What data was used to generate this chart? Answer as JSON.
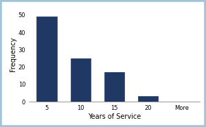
{
  "categories": [
    "5",
    "10",
    "15",
    "20",
    "More"
  ],
  "values": [
    49,
    25,
    17,
    3,
    0
  ],
  "bar_color": "#1F3864",
  "xlabel": "Years of Service",
  "ylabel": "Frequency",
  "ylim": [
    0,
    55
  ],
  "yticks": [
    0,
    10,
    20,
    30,
    40,
    50
  ],
  "background_color": "#ffffff",
  "border_color": "#a0c4d8",
  "tick_labelsize": 6,
  "axis_labelsize": 7,
  "bar_width": 0.6
}
